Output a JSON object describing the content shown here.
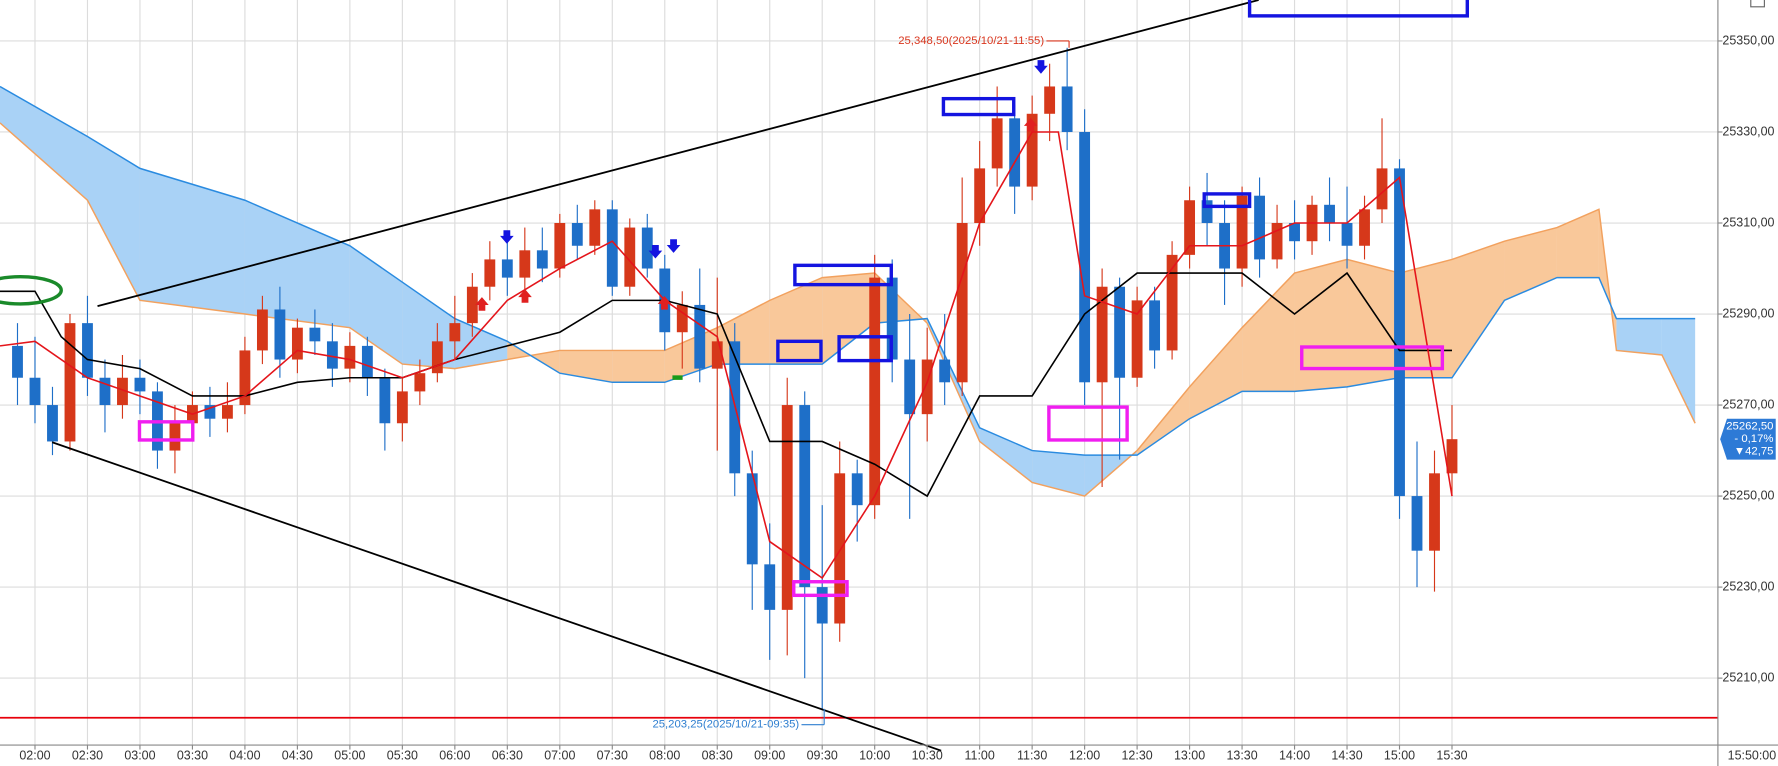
{
  "chart_data": {
    "type": "candlestick",
    "x": [
      "01:50",
      "02:00",
      "02:10",
      "02:20",
      "02:30",
      "02:40",
      "02:50",
      "03:00",
      "03:10",
      "03:20",
      "03:30",
      "03:40",
      "03:50",
      "04:00",
      "04:10",
      "04:20",
      "04:30",
      "04:40",
      "04:50",
      "05:00",
      "05:10",
      "05:20",
      "05:30",
      "05:40",
      "05:50",
      "06:00",
      "06:10",
      "06:20",
      "06:30",
      "06:40",
      "06:50",
      "07:00",
      "07:10",
      "07:20",
      "07:30",
      "07:40",
      "07:50",
      "08:00",
      "08:10",
      "08:20",
      "08:30",
      "08:40",
      "08:50",
      "09:00",
      "09:10",
      "09:20",
      "09:30",
      "09:40",
      "09:50",
      "10:00",
      "10:10",
      "10:20",
      "10:30",
      "10:40",
      "10:50",
      "11:00",
      "11:10",
      "11:20",
      "11:30",
      "11:40",
      "11:50",
      "12:00",
      "12:10",
      "12:20",
      "12:30",
      "12:40",
      "12:50",
      "13:00",
      "13:10",
      "13:20",
      "13:30",
      "13:40",
      "13:50",
      "14:00",
      "14:10",
      "14:20",
      "14:30",
      "14:40",
      "14:50",
      "15:00",
      "15:10",
      "15:20",
      "15:30"
    ],
    "open": [
      25283,
      25276,
      25270,
      25262,
      25288,
      25276,
      25270,
      25276,
      25273,
      25260,
      25266,
      25270,
      25267,
      25270,
      25282,
      25291,
      25280,
      25287,
      25284,
      25278,
      25283,
      25276,
      25266,
      25273,
      25277,
      25284,
      25288,
      25296,
      25302,
      25298,
      25304,
      25300,
      25310,
      25305,
      25313,
      25296,
      25309,
      25300,
      25286,
      25292,
      25278,
      25284,
      25255,
      25235,
      25225,
      25270,
      25230,
      25222,
      25255,
      25248,
      25298,
      25280,
      25268,
      25280,
      25275,
      25310,
      25322,
      25333,
      25318,
      25334,
      25340,
      25330,
      25275,
      25296,
      25276,
      25293,
      25282,
      25303,
      25315,
      25310,
      25300,
      25316,
      25302,
      25310,
      25306,
      25314,
      25310,
      25305,
      25313,
      25322,
      25250,
      25238,
      25255
    ],
    "high": [
      25288,
      25285,
      25274,
      25290,
      25294,
      25280,
      25281,
      25280,
      25275,
      25270,
      25273,
      25274,
      25275,
      25285,
      25294,
      25296,
      25289,
      25291,
      25288,
      25286,
      25285,
      25278,
      25276,
      25280,
      25288,
      25294,
      25299,
      25306,
      25307,
      25309,
      25309,
      25312,
      25314,
      25315,
      25315,
      25311,
      25312,
      25303,
      25295,
      25300,
      25298,
      25288,
      25260,
      25244,
      25276,
      25273,
      25248,
      25262,
      25258,
      25303,
      25302,
      25290,
      25287,
      25290,
      25320,
      25328,
      25340,
      25336,
      25338,
      25345,
      25348.5,
      25335,
      25300,
      25298,
      25296,
      25296,
      25306,
      25318,
      25321,
      25315,
      25318,
      25320,
      25314,
      25315,
      25316,
      25320,
      25318,
      25316,
      25333,
      25324,
      25262,
      25260,
      25270
    ],
    "low": [
      25270,
      25266,
      25259,
      25260,
      25272,
      25264,
      25267,
      25268,
      25256,
      25255,
      25262,
      25263,
      25264,
      25268,
      25279,
      25276,
      25277,
      25281,
      25274,
      25275,
      25272,
      25260,
      25262,
      25270,
      25275,
      25280,
      25285,
      25293,
      25294,
      25295,
      25297,
      25298,
      25302,
      25303,
      25294,
      25294,
      25298,
      25282,
      25278,
      25275,
      25260,
      25250,
      25225,
      25214,
      25215,
      25210,
      25203.25,
      25218,
      25240,
      25245,
      25275,
      25245,
      25262,
      25270,
      25272,
      25305,
      25318,
      25312,
      25315,
      25328,
      25326,
      25270,
      25252,
      25258,
      25274,
      25278,
      25280,
      25300,
      25305,
      25292,
      25296,
      25298,
      25300,
      25302,
      25303,
      25306,
      25300,
      25302,
      25310,
      25245,
      25230,
      25229,
      25250
    ],
    "close": [
      25276,
      25270,
      25262,
      25288,
      25276,
      25270,
      25276,
      25273,
      25260,
      25266,
      25270,
      25267,
      25270,
      25282,
      25291,
      25280,
      25287,
      25284,
      25278,
      25283,
      25276,
      25266,
      25273,
      25277,
      25284,
      25288,
      25296,
      25302,
      25298,
      25304,
      25300,
      25310,
      25305,
      25313,
      25296,
      25309,
      25300,
      25286,
      25292,
      25278,
      25284,
      25255,
      25235,
      25225,
      25270,
      25230,
      25222,
      25255,
      25248,
      25298,
      25280,
      25268,
      25280,
      25275,
      25310,
      25322,
      25333,
      25318,
      25334,
      25340,
      25330,
      25275,
      25296,
      25276,
      25293,
      25282,
      25303,
      25315,
      25310,
      25300,
      25316,
      25302,
      25310,
      25306,
      25314,
      25310,
      25305,
      25313,
      25322,
      25250,
      25238,
      25255,
      25262.5
    ],
    "up_color": "#d6381a",
    "down_color": "#1e6fc8",
    "xlim": [
      "01:40",
      "18:02"
    ],
    "ylim": [
      25195.3,
      25359
    ],
    "xticks": [
      "02:00",
      "02:30",
      "03:00",
      "03:30",
      "04:00",
      "04:30",
      "05:00",
      "05:30",
      "06:00",
      "06:30",
      "07:00",
      "07:30",
      "08:00",
      "08:30",
      "09:00",
      "09:30",
      "10:00",
      "10:30",
      "11:00",
      "11:30",
      "12:00",
      "12:30",
      "13:00",
      "13:30",
      "14:00",
      "14:30",
      "15:00",
      "15:30"
    ],
    "yticks": [
      {
        "value": 25350,
        "label": "25350,00"
      },
      {
        "value": 25330,
        "label": "25330,00"
      },
      {
        "value": 25310,
        "label": "25310,00"
      },
      {
        "value": 25290,
        "label": "25290,00"
      },
      {
        "value": 25270,
        "label": "25270,00"
      },
      {
        "value": 25250,
        "label": "25250,00"
      },
      {
        "value": 25230,
        "label": "25230,00"
      },
      {
        "value": 25210,
        "label": "25210,00"
      }
    ],
    "grid": true,
    "cloud": {
      "x": [
        "01:40",
        "02:30",
        "03:00",
        "04:00",
        "05:00",
        "05:30",
        "06:00",
        "06:30",
        "07:00",
        "07:30",
        "08:00",
        "08:30",
        "09:00",
        "09:30",
        "10:00",
        "10:30",
        "11:00",
        "11:30",
        "12:00",
        "12:30",
        "13:00",
        "13:30",
        "14:00",
        "14:30",
        "15:00",
        "15:30",
        "16:00",
        "16:30",
        "16:54",
        "17:04",
        "17:30",
        "17:49"
      ],
      "span_a": [
        25332,
        25315,
        25293,
        25290,
        25287,
        25279,
        25278,
        25280,
        25282,
        25282,
        25282,
        25287,
        25293,
        25298,
        25299,
        25288,
        25262,
        25253,
        25250,
        25260,
        25274,
        25287,
        25299,
        25302,
        25299,
        25302,
        25306,
        25309,
        25313,
        25282,
        25281,
        25266
      ],
      "span_b": [
        25340,
        25329,
        25322,
        25315,
        25305,
        25297,
        25289,
        25284,
        25277,
        25275,
        25275,
        25279,
        25279,
        25279,
        25288,
        25289,
        25265,
        25260,
        25259,
        25259,
        25267,
        25273,
        25273,
        25274,
        25276,
        25276,
        25293,
        25298,
        25298,
        25289,
        25289,
        25289
      ],
      "span_a_color": "#f2a15e",
      "span_b_color": "#2a8be0",
      "fill_a": "#f9c89a",
      "fill_b": "#a9d2f6"
    },
    "overlays": [
      {
        "color": "#000000",
        "x": [
          "01:40",
          "02:00",
          "02:15",
          "02:30",
          "03:00",
          "03:30",
          "04:00",
          "04:30",
          "05:00",
          "05:30",
          "06:00",
          "06:30",
          "07:00",
          "07:30",
          "08:00",
          "08:30",
          "09:00",
          "09:30",
          "10:00",
          "10:30",
          "11:00",
          "11:30",
          "12:00",
          "12:30",
          "13:00",
          "13:30",
          "14:00",
          "14:30",
          "15:00",
          "15:30"
        ],
        "values": [
          25295,
          25295,
          25285,
          25280,
          25278,
          25272,
          25272,
          25275,
          25276,
          25276,
          25280,
          25283,
          25286,
          25293,
          25293,
          25290,
          25262,
          25262,
          25257,
          25250,
          25272,
          25272,
          25290,
          25299,
          25299,
          25299,
          25290,
          25299,
          25282,
          25282
        ]
      },
      {
        "color": "#e4151b",
        "x": [
          "01:40",
          "02:00",
          "02:30",
          "03:00",
          "03:30",
          "04:00",
          "04:30",
          "05:00",
          "05:30",
          "06:00",
          "06:30",
          "07:00",
          "07:30",
          "08:00",
          "08:30",
          "09:00",
          "09:30",
          "10:00",
          "10:30",
          "11:00",
          "11:30",
          "11:45",
          "12:00",
          "12:30",
          "13:00",
          "13:30",
          "14:00",
          "14:30",
          "15:00",
          "15:30"
        ],
        "values": [
          25283,
          25284,
          25276,
          25272,
          25268,
          25272,
          25282,
          25280,
          25276,
          25280,
          25293,
          25300,
          25306,
          25293,
          25285,
          25240,
          25232,
          25250,
          25275,
          25310,
          25330,
          25330,
          25294,
          25290,
          25305,
          25305,
          25310,
          25310,
          25320,
          25250
        ]
      }
    ],
    "hline": {
      "value": 25201.3,
      "color": "#e8000b"
    },
    "annotations": [
      {
        "text": "25,348,50(2025/10/21-11:55)",
        "value": 25348.5,
        "x": "11:55",
        "color": "#d9361e"
      },
      {
        "text": "25,203,25(2025/10/21-09:35)",
        "value": 25203.25,
        "x": "09:35",
        "color": "#2f7fd0"
      }
    ],
    "last_price": {
      "value": 25262.5,
      "label": "25262,50"
    },
    "change_pct": {
      "value": -0.17,
      "label": "- 0,17%"
    },
    "change": {
      "value": -42.75,
      "label": "▼42,75"
    },
    "time_label": "15:50:00"
  }
}
